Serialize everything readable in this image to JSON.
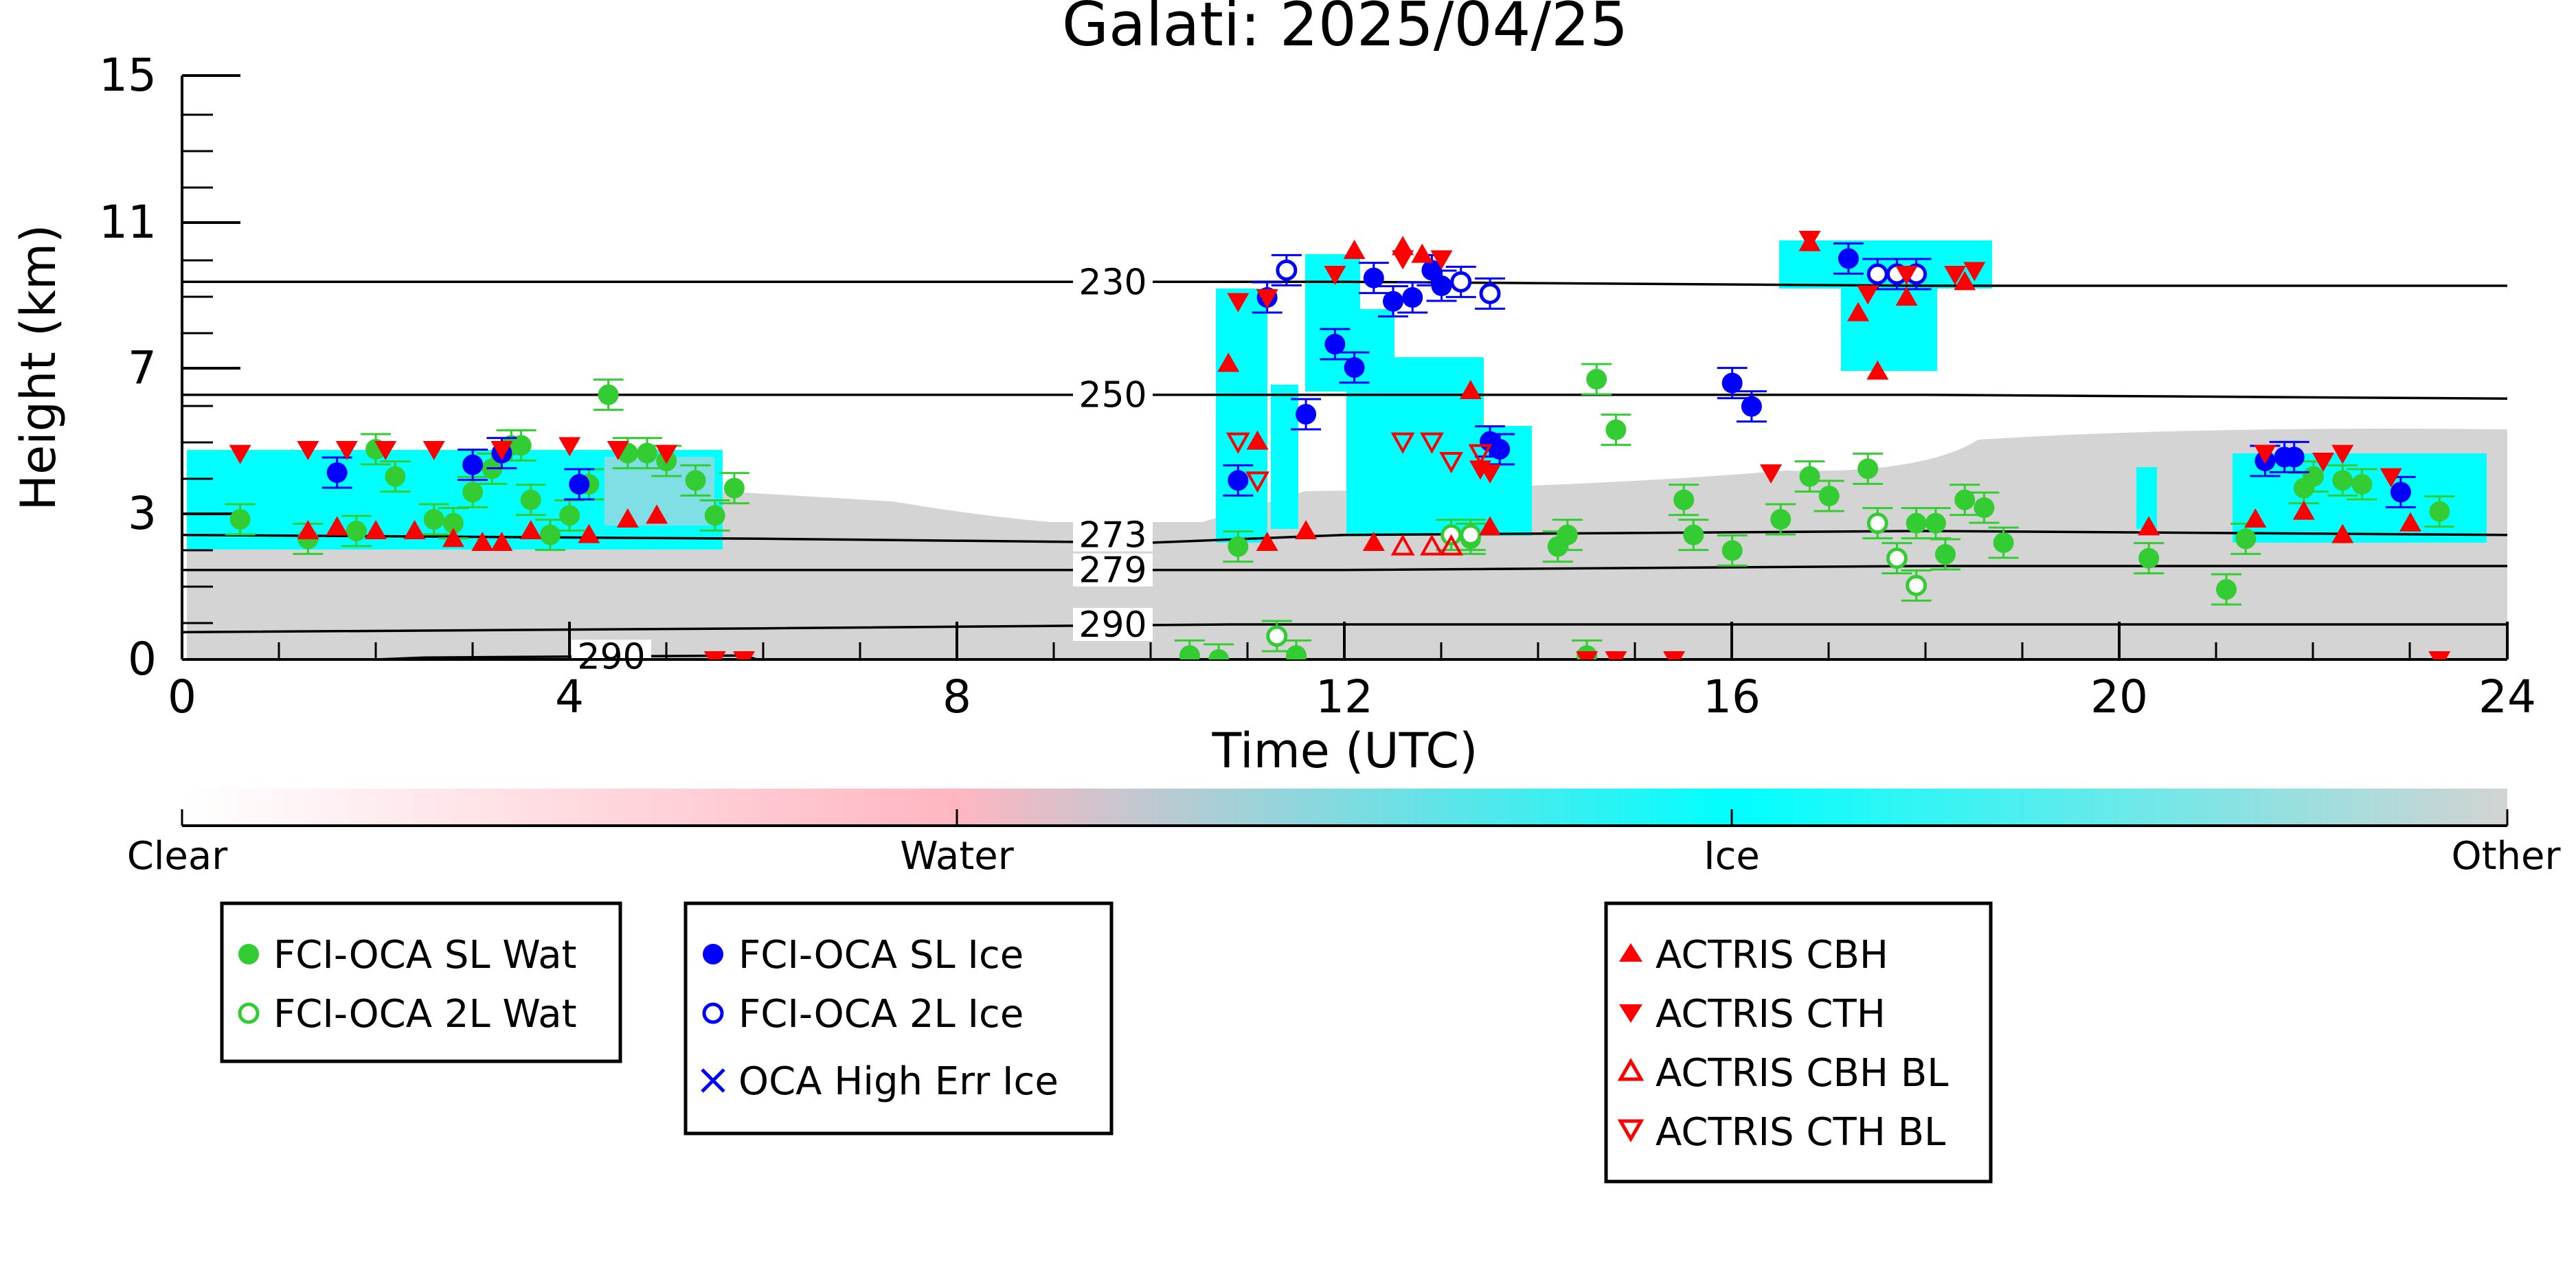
{
  "chart_data": {
    "type": "scatter",
    "title": "Galati: 2025/04/25",
    "xlabel": "Time (UTC)",
    "ylabel": "Height (km)",
    "xlim": [
      0,
      24
    ],
    "ylim": [
      0,
      15
    ],
    "x_ticks": [
      0,
      4,
      8,
      12,
      16,
      20,
      24
    ],
    "y_ticks": [
      0,
      3,
      7,
      11,
      15
    ],
    "isotherms": [
      {
        "label": "230",
        "points": [
          [
            0,
            9.7
          ],
          [
            6,
            9.7
          ],
          [
            12,
            9.7
          ],
          [
            18,
            9.6
          ],
          [
            24,
            9.6
          ]
        ]
      },
      {
        "label": "250",
        "points": [
          [
            0,
            6.8
          ],
          [
            6,
            6.8
          ],
          [
            12,
            6.8
          ],
          [
            18,
            6.8
          ],
          [
            24,
            6.7
          ]
        ]
      },
      {
        "label": "273",
        "points": [
          [
            0,
            3.2
          ],
          [
            6,
            3.1
          ],
          [
            10,
            3.0
          ],
          [
            12,
            3.2
          ],
          [
            18,
            3.3
          ],
          [
            24,
            3.2
          ]
        ]
      },
      {
        "label": "279",
        "points": [
          [
            0,
            2.3
          ],
          [
            6,
            2.3
          ],
          [
            12,
            2.3
          ],
          [
            18,
            2.4
          ],
          [
            24,
            2.4
          ]
        ]
      },
      {
        "label": "290",
        "points": [
          [
            0,
            0.7
          ],
          [
            6,
            0.8
          ],
          [
            10.8,
            0.9
          ],
          [
            12,
            0.9
          ],
          [
            18,
            0.9
          ],
          [
            24,
            0.9
          ]
        ]
      },
      {
        "label": "290",
        "points": [
          [
            0,
            -0.2
          ],
          [
            2.5,
            0.05
          ],
          [
            5.8,
            0.1
          ],
          [
            6.2,
            -0.2
          ]
        ]
      }
    ],
    "colorbar": {
      "labels": [
        "Clear",
        "Water",
        "Ice",
        "Other"
      ],
      "colors": [
        "#ffffff",
        "#ffb6c1",
        "#00ffff",
        "#d3d3d3"
      ]
    },
    "series": [
      {
        "name": "FCI-OCA SL Wat",
        "marker": "circle-filled",
        "color": "#33cc33",
        "points": [
          [
            0.6,
            3.6
          ],
          [
            1.3,
            3.1
          ],
          [
            1.8,
            3.3
          ],
          [
            2.0,
            5.4
          ],
          [
            2.2,
            4.7
          ],
          [
            2.6,
            3.6
          ],
          [
            2.8,
            3.5
          ],
          [
            3.0,
            4.3
          ],
          [
            3.2,
            4.9
          ],
          [
            3.4,
            5.5
          ],
          [
            3.5,
            5.5
          ],
          [
            3.6,
            4.1
          ],
          [
            3.8,
            3.2
          ],
          [
            4.0,
            3.7
          ],
          [
            4.2,
            4.5
          ],
          [
            4.4,
            6.8
          ],
          [
            4.6,
            5.3
          ],
          [
            4.8,
            5.3
          ],
          [
            5.0,
            5.1
          ],
          [
            5.3,
            4.6
          ],
          [
            5.5,
            3.7
          ],
          [
            5.7,
            4.4
          ],
          [
            10.4,
            0.1
          ],
          [
            10.7,
            0.0
          ],
          [
            10.9,
            2.9
          ],
          [
            11.5,
            0.1
          ],
          [
            13.3,
            3.1
          ],
          [
            14.2,
            2.9
          ],
          [
            14.3,
            3.2
          ],
          [
            14.5,
            0.1
          ],
          [
            14.6,
            7.2
          ],
          [
            14.8,
            5.9
          ],
          [
            15.5,
            4.1
          ],
          [
            15.6,
            3.2
          ],
          [
            16.0,
            2.8
          ],
          [
            16.5,
            3.6
          ],
          [
            16.8,
            4.7
          ],
          [
            17.0,
            4.2
          ],
          [
            17.4,
            4.9
          ],
          [
            17.9,
            3.5
          ],
          [
            18.1,
            3.5
          ],
          [
            18.2,
            2.7
          ],
          [
            18.4,
            4.1
          ],
          [
            18.6,
            3.9
          ],
          [
            18.8,
            3.0
          ],
          [
            20.3,
            2.6
          ],
          [
            21.1,
            1.8
          ],
          [
            21.3,
            3.1
          ],
          [
            21.9,
            4.4
          ],
          [
            22.0,
            4.7
          ],
          [
            22.3,
            4.6
          ],
          [
            22.5,
            4.5
          ],
          [
            23.3,
            3.8
          ]
        ]
      },
      {
        "name": "FCI-OCA 2L Wat",
        "marker": "circle-open",
        "color": "#33cc33",
        "points": [
          [
            11.3,
            0.6
          ],
          [
            13.1,
            3.2
          ],
          [
            13.3,
            3.2
          ],
          [
            17.5,
            3.5
          ],
          [
            17.7,
            2.6
          ],
          [
            17.9,
            1.9
          ]
        ]
      },
      {
        "name": "FCI-OCA SL Ice",
        "marker": "circle-filled",
        "color": "#0000ff",
        "points": [
          [
            1.6,
            4.8
          ],
          [
            3.0,
            5.0
          ],
          [
            3.3,
            5.3
          ],
          [
            4.1,
            4.5
          ],
          [
            10.9,
            4.6
          ],
          [
            11.2,
            9.3
          ],
          [
            11.6,
            6.3
          ],
          [
            11.9,
            8.1
          ],
          [
            12.1,
            7.5
          ],
          [
            12.3,
            9.8
          ],
          [
            12.5,
            9.2
          ],
          [
            12.7,
            9.3
          ],
          [
            12.9,
            10.0
          ],
          [
            13.0,
            9.6
          ],
          [
            13.5,
            5.6
          ],
          [
            13.6,
            5.4
          ],
          [
            16.0,
            7.1
          ],
          [
            16.2,
            6.5
          ],
          [
            17.2,
            10.3
          ],
          [
            22.9,
            4.3
          ],
          [
            21.5,
            5.1
          ],
          [
            21.7,
            5.2
          ],
          [
            21.8,
            5.2
          ]
        ]
      },
      {
        "name": "FCI-OCA 2L Ice",
        "marker": "circle-open",
        "color": "#0000ff",
        "points": [
          [
            11.4,
            10.0
          ],
          [
            13.2,
            9.7
          ],
          [
            13.5,
            9.4
          ],
          [
            17.5,
            9.9
          ],
          [
            17.7,
            9.9
          ],
          [
            17.9,
            9.9
          ]
        ]
      },
      {
        "name": "OCA High Err Ice",
        "marker": "x",
        "color": "#0000ff",
        "points": []
      },
      {
        "name": "ACTRIS CBH",
        "marker": "triangle-up-filled",
        "color": "#ff0000",
        "points": [
          [
            1.3,
            3.3
          ],
          [
            1.6,
            3.4
          ],
          [
            2.0,
            3.3
          ],
          [
            2.4,
            3.3
          ],
          [
            2.8,
            3.1
          ],
          [
            3.1,
            3.0
          ],
          [
            3.3,
            3.0
          ],
          [
            3.6,
            3.3
          ],
          [
            4.2,
            3.2
          ],
          [
            4.6,
            3.6
          ],
          [
            4.9,
            3.7
          ],
          [
            10.8,
            7.6
          ],
          [
            11.1,
            5.6
          ],
          [
            11.2,
            3.0
          ],
          [
            11.6,
            3.3
          ],
          [
            12.1,
            10.5
          ],
          [
            12.3,
            3.0
          ],
          [
            12.6,
            10.6
          ],
          [
            12.8,
            10.4
          ],
          [
            13.3,
            6.9
          ],
          [
            13.5,
            3.4
          ],
          [
            16.8,
            10.7
          ],
          [
            17.3,
            8.9
          ],
          [
            17.5,
            7.4
          ],
          [
            17.8,
            9.3
          ],
          [
            18.4,
            9.7
          ],
          [
            20.3,
            3.4
          ],
          [
            21.4,
            3.6
          ],
          [
            21.9,
            3.8
          ],
          [
            22.3,
            3.2
          ],
          [
            23.0,
            3.5
          ]
        ]
      },
      {
        "name": "ACTRIS CTH",
        "marker": "triangle-down-filled",
        "color": "#ff0000",
        "points": [
          [
            0.6,
            5.3
          ],
          [
            1.3,
            5.4
          ],
          [
            1.7,
            5.4
          ],
          [
            2.1,
            5.4
          ],
          [
            2.6,
            5.4
          ],
          [
            3.3,
            5.4
          ],
          [
            4.0,
            5.5
          ],
          [
            4.5,
            5.4
          ],
          [
            5.0,
            5.3
          ],
          [
            5.5,
            0.0
          ],
          [
            5.8,
            0.0
          ],
          [
            10.9,
            9.2
          ],
          [
            11.2,
            9.3
          ],
          [
            11.9,
            9.9
          ],
          [
            12.6,
            10.3
          ],
          [
            13.0,
            10.3
          ],
          [
            13.4,
            4.9
          ],
          [
            13.5,
            4.8
          ],
          [
            14.5,
            0.0
          ],
          [
            14.8,
            0.0
          ],
          [
            15.4,
            0.0
          ],
          [
            16.4,
            4.8
          ],
          [
            16.8,
            10.8
          ],
          [
            17.4,
            9.4
          ],
          [
            17.8,
            9.9
          ],
          [
            18.3,
            9.9
          ],
          [
            18.5,
            10.0
          ],
          [
            21.5,
            5.3
          ],
          [
            22.1,
            5.1
          ],
          [
            22.3,
            5.3
          ],
          [
            22.8,
            4.7
          ],
          [
            23.3,
            0.0
          ]
        ]
      },
      {
        "name": "ACTRIS CBH BL",
        "marker": "triangle-up-open",
        "color": "#ff0000",
        "points": [
          [
            12.6,
            2.9
          ],
          [
            12.9,
            2.9
          ],
          [
            13.1,
            2.9
          ]
        ]
      },
      {
        "name": "ACTRIS CTH BL",
        "marker": "triangle-down-open",
        "color": "#ff0000",
        "points": [
          [
            10.9,
            5.6
          ],
          [
            11.1,
            4.6
          ],
          [
            12.6,
            5.6
          ],
          [
            12.9,
            5.6
          ],
          [
            13.1,
            5.1
          ],
          [
            13.4,
            5.3
          ]
        ]
      }
    ]
  },
  "legends": [
    {
      "items": [
        {
          "label": "FCI-OCA SL Wat"
        },
        {
          "label": "FCI-OCA 2L Wat"
        }
      ]
    },
    {
      "items": [
        {
          "label": "FCI-OCA SL Ice"
        },
        {
          "label": "FCI-OCA 2L Ice"
        },
        {
          "label": "OCA High Err Ice"
        }
      ]
    },
    {
      "items": [
        {
          "label": "ACTRIS CBH"
        },
        {
          "label": "ACTRIS CTH"
        },
        {
          "label": "ACTRIS CBH BL"
        },
        {
          "label": "ACTRIS CTH BL"
        }
      ]
    }
  ]
}
